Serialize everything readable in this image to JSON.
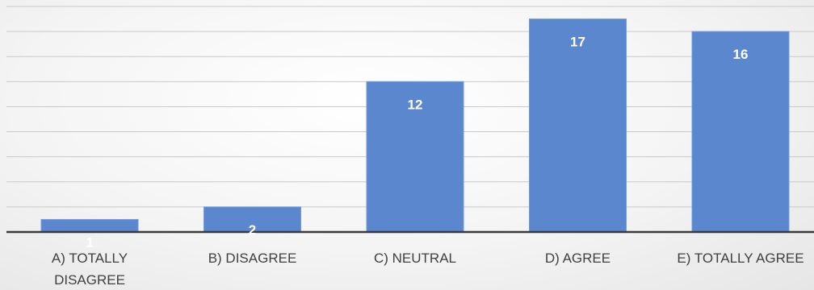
{
  "chart_data": {
    "type": "bar",
    "categories": [
      "A) TOTALLY DISAGREE",
      "B) DISAGREE",
      "C) NEUTRAL",
      "D) AGREE",
      "E) TOTALLY AGREE"
    ],
    "category_lines": [
      [
        "A) TOTALLY",
        "DISAGREE"
      ],
      [
        "B) DISAGREE"
      ],
      [
        "C) NEUTRAL"
      ],
      [
        "D) AGREE"
      ],
      [
        "E) TOTALLY AGREE"
      ]
    ],
    "values": [
      1,
      2,
      12,
      17,
      16
    ],
    "title": "",
    "xlabel": "",
    "ylabel": "",
    "ylim": [
      0,
      18
    ],
    "grid": true,
    "bar_color": "#5b87cf",
    "label_color": "#ffffff"
  }
}
